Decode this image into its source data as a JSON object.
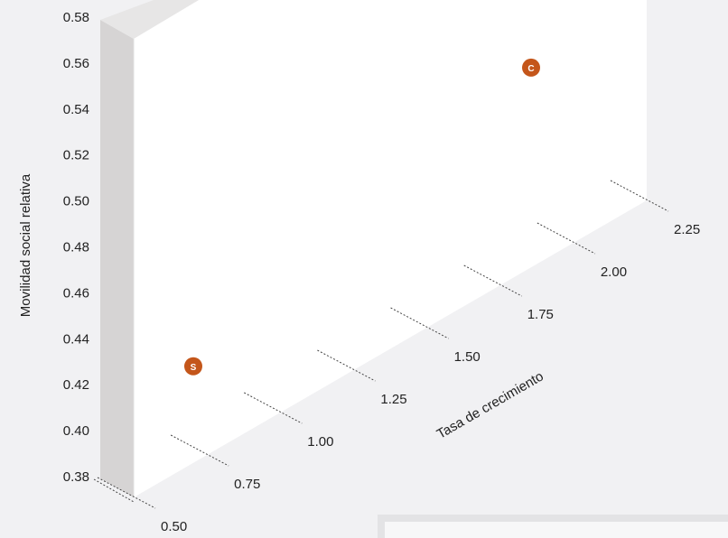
{
  "chart_data": {
    "type": "scatter",
    "title": "",
    "xlabel": "Tasa de crecimiento",
    "ylabel": "Movilidad social relativa",
    "xlim": [
      0.5,
      2.25
    ],
    "ylim": [
      0.38,
      0.58
    ],
    "x_ticks": [
      "0.50",
      "0.75",
      "1.00",
      "1.25",
      "1.50",
      "1.75",
      "2.00",
      "2.25"
    ],
    "y_ticks": [
      "0.38",
      "0.40",
      "0.42",
      "0.44",
      "0.46",
      "0.48",
      "0.50",
      "0.52",
      "0.54",
      "0.56",
      "0.58"
    ],
    "grid": false,
    "points": [
      {
        "label": "S",
        "x": 0.5,
        "y": 0.43
      },
      {
        "label": "C",
        "x": 2.25,
        "y": 0.56
      }
    ],
    "colors": {
      "point": "#c4561a",
      "wall_front": "#ffffff",
      "wall_side": "#d6d4d4",
      "background": "#f1f1f3"
    }
  }
}
